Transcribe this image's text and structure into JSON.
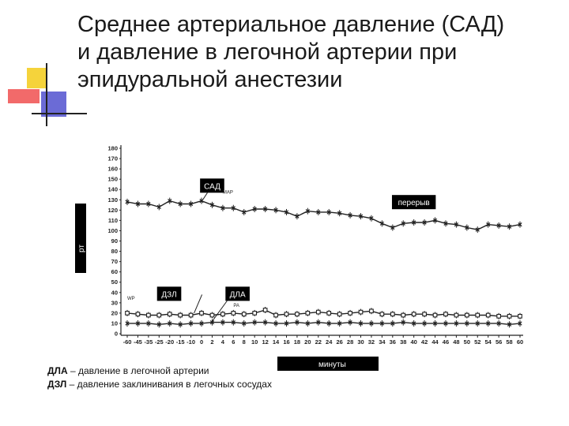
{
  "title": {
    "line1": "Среднее артериальное давление (САД)",
    "line2": "и давление в легочной артерии при",
    "line3": "эпидуральной анестезии"
  },
  "legend": {
    "line1_abbr": "ДЛА",
    "line1_text": " – давление в легочной артерии",
    "line2_abbr": "ДЗЛ",
    "line2_text": " – давление заклинивания  в легочных сосудах"
  },
  "colors": {
    "line": "#222222",
    "label_box": "#000000",
    "decor_yellow": "#f5d33b",
    "decor_red": "#f26a6a",
    "decor_blue": "#6b6bd6"
  },
  "chart_data": {
    "type": "line",
    "ylabel": "рт",
    "xlabel": "минуты",
    "ylim": [
      0,
      180
    ],
    "yticks": [
      0,
      10,
      20,
      30,
      40,
      50,
      60,
      70,
      80,
      90,
      100,
      110,
      120,
      130,
      140,
      150,
      160,
      170,
      180
    ],
    "x": [
      -60,
      -45,
      -35,
      -25,
      -20,
      -15,
      -10,
      0,
      2,
      4,
      6,
      8,
      10,
      12,
      14,
      16,
      18,
      20,
      22,
      24,
      26,
      28,
      30,
      32,
      34,
      36,
      38,
      40,
      42,
      44,
      46,
      48,
      50,
      52,
      54,
      56,
      58,
      60
    ],
    "xtick_labels": [
      "-60",
      "-45",
      "-35",
      "-25",
      "-20",
      "-15",
      "-10",
      "0",
      "2",
      "4",
      "6",
      "8",
      "10",
      "12",
      "14",
      "16",
      "18",
      "20",
      "22",
      "24",
      "26",
      "28",
      "30",
      "32",
      "34",
      "36",
      "38",
      "40",
      "42",
      "44",
      "46",
      "48",
      "50",
      "52",
      "54",
      "56",
      "58",
      "60"
    ],
    "annotations": [
      {
        "text": "САД",
        "x": 2,
        "y": 143
      },
      {
        "text": "перерыв",
        "x": 40,
        "y": 127
      },
      {
        "text": "ДЗЛ",
        "x": -20,
        "y": 38
      },
      {
        "text": "ДЛА",
        "x": 6,
        "y": 38
      },
      {
        "text": "MAP",
        "x": 4,
        "y": 136
      },
      {
        "text": "WP",
        "x": -8,
        "y": 33
      },
      {
        "text": "PA",
        "x": 6,
        "y": 26
      }
    ],
    "series": [
      {
        "name": "САД",
        "marker": "x",
        "values": [
          128,
          126,
          126,
          123,
          129,
          126,
          126,
          129,
          125,
          122,
          122,
          118,
          121,
          121,
          120,
          118,
          114,
          119,
          118,
          118,
          117,
          115,
          114,
          112,
          107,
          103,
          107,
          108,
          108,
          110,
          107,
          106,
          103,
          101,
          106,
          105,
          104,
          106
        ]
      },
      {
        "name": "ДЛА",
        "marker": "square",
        "values": [
          20,
          19,
          18,
          18,
          19,
          18,
          18,
          20,
          18,
          19,
          20,
          19,
          20,
          23,
          18,
          19,
          19,
          20,
          21,
          20,
          19,
          20,
          21,
          22,
          19,
          19,
          18,
          19,
          19,
          18,
          19,
          18,
          18,
          18,
          18,
          17,
          17,
          17
        ]
      },
      {
        "name": "ДЗЛ",
        "marker": "x",
        "values": [
          10,
          10,
          10,
          9,
          10,
          9,
          10,
          10,
          11,
          11,
          11,
          10,
          11,
          11,
          10,
          10,
          11,
          10,
          11,
          10,
          10,
          11,
          10,
          10,
          10,
          10,
          11,
          10,
          10,
          10,
          10,
          10,
          10,
          10,
          10,
          10,
          9,
          10
        ]
      }
    ]
  }
}
